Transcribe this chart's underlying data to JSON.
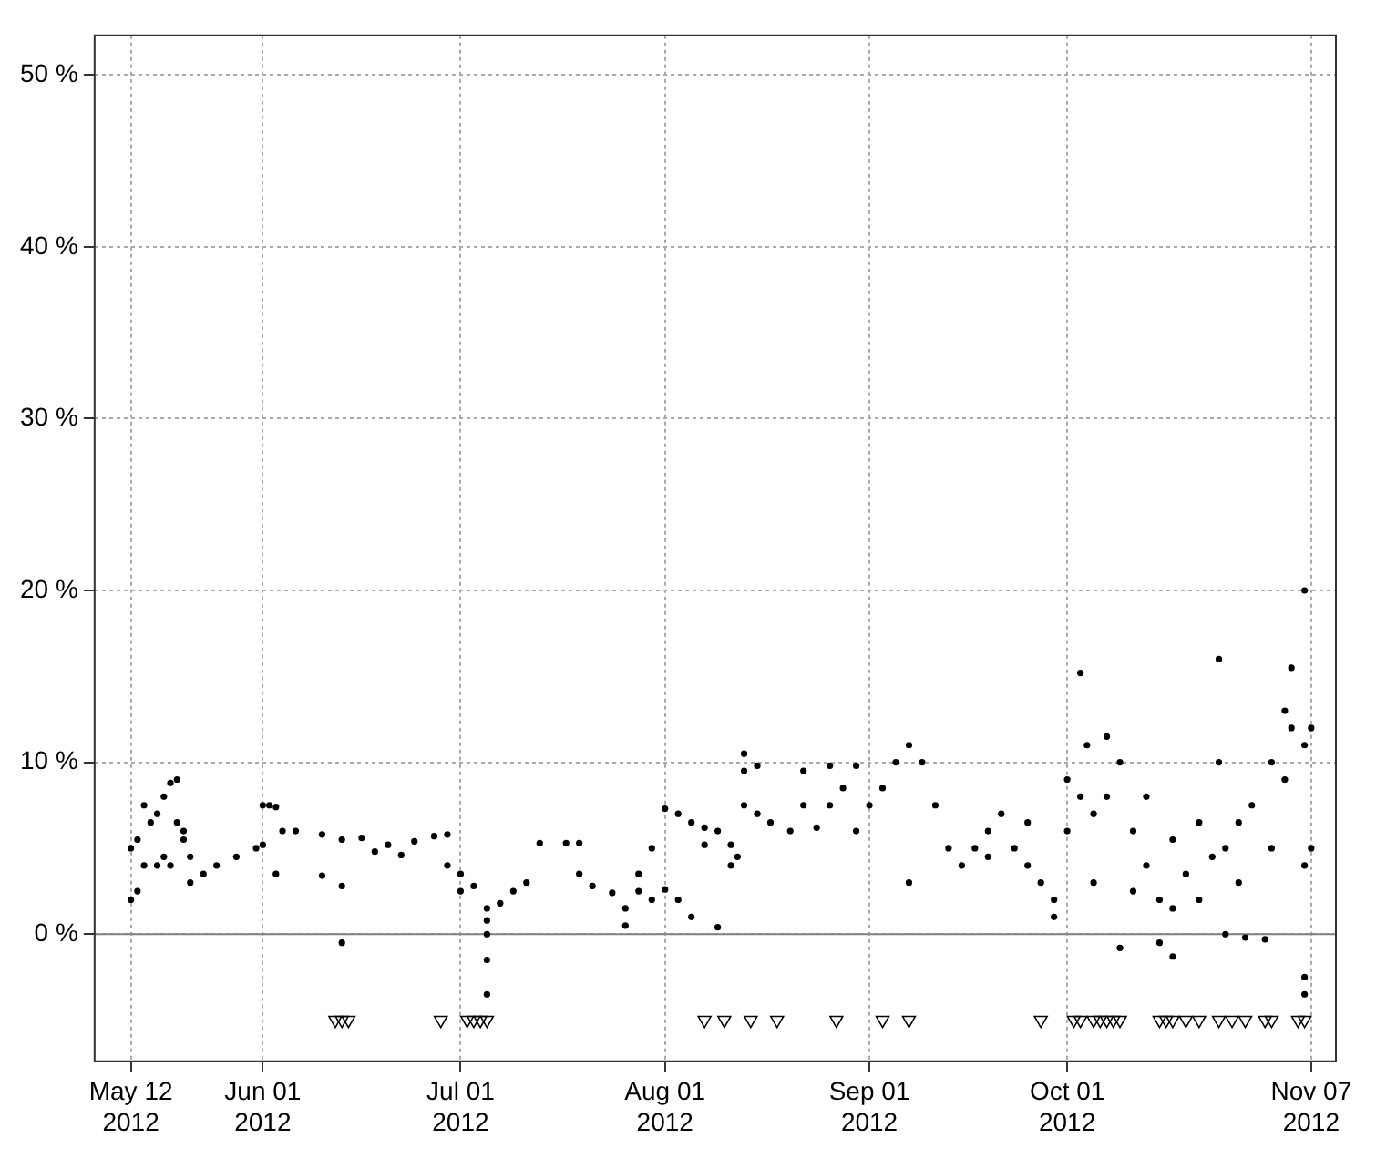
{
  "chart_data": {
    "type": "scatter",
    "xlim": [
      "2012-05-06T12:00",
      "2012-11-10T18:00"
    ],
    "ylim": [
      -7.4,
      52.3
    ],
    "xticks": [
      {
        "value": "2012-05-12",
        "label": "May 12\n2012"
      },
      {
        "value": "2012-06-01",
        "label": "Jun 01\n2012"
      },
      {
        "value": "2012-07-01",
        "label": "Jul 01\n2012"
      },
      {
        "value": "2012-08-01",
        "label": "Aug 01\n2012"
      },
      {
        "value": "2012-09-01",
        "label": "Sep 01\n2012"
      },
      {
        "value": "2012-10-01",
        "label": "Oct 01\n2012"
      },
      {
        "value": "2012-11-07",
        "label": "Nov 07\n2012"
      }
    ],
    "yticks": [
      {
        "value": 0,
        "label": "0 %"
      },
      {
        "value": 10,
        "label": "10 %"
      },
      {
        "value": 20,
        "label": "20 %"
      },
      {
        "value": 30,
        "label": "30 %"
      },
      {
        "value": 40,
        "label": "40 %"
      },
      {
        "value": 50,
        "label": "50 %"
      }
    ],
    "grid": true,
    "legend": false,
    "ref_lines": [
      {
        "axis": "y",
        "value": 0,
        "color": "#808080",
        "line_style": "solid"
      }
    ],
    "series": [
      {
        "color": "#000000",
        "marker": "circle",
        "x": [
          "2012-05-12",
          "2012-05-12",
          "2012-05-13",
          "2012-05-13",
          "2012-05-14",
          "2012-05-14",
          "2012-05-15",
          "2012-05-16",
          "2012-05-16",
          "2012-05-17",
          "2012-05-17",
          "2012-05-18",
          "2012-05-18",
          "2012-05-19",
          "2012-05-19",
          "2012-05-20",
          "2012-05-20",
          "2012-05-21",
          "2012-05-21",
          "2012-05-23",
          "2012-05-25",
          "2012-05-28",
          "2012-05-31",
          "2012-06-01",
          "2012-06-01",
          "2012-06-02",
          "2012-06-03",
          "2012-06-03",
          "2012-06-04",
          "2012-06-06",
          "2012-06-10",
          "2012-06-10",
          "2012-06-13",
          "2012-06-13",
          "2012-06-13",
          "2012-06-16",
          "2012-06-18",
          "2012-06-20",
          "2012-06-22",
          "2012-06-24",
          "2012-06-27",
          "2012-06-29",
          "2012-06-29",
          "2012-07-01",
          "2012-07-01",
          "2012-07-03",
          "2012-07-05",
          "2012-07-05",
          "2012-07-05",
          "2012-07-05",
          "2012-07-05",
          "2012-07-07",
          "2012-07-09",
          "2012-07-11",
          "2012-07-13",
          "2012-07-17",
          "2012-07-19",
          "2012-07-19",
          "2012-07-21",
          "2012-07-24",
          "2012-07-26",
          "2012-07-26",
          "2012-07-28",
          "2012-07-28",
          "2012-07-30",
          "2012-07-30",
          "2012-08-01",
          "2012-08-01",
          "2012-08-03",
          "2012-08-03",
          "2012-08-05",
          "2012-08-05",
          "2012-08-07",
          "2012-08-07",
          "2012-08-09",
          "2012-08-09",
          "2012-08-11",
          "2012-08-11",
          "2012-08-12",
          "2012-08-13",
          "2012-08-13",
          "2012-08-13",
          "2012-08-15",
          "2012-08-15",
          "2012-08-17",
          "2012-08-20",
          "2012-08-22",
          "2012-08-22",
          "2012-08-24",
          "2012-08-26",
          "2012-08-26",
          "2012-08-28",
          "2012-08-30",
          "2012-08-30",
          "2012-09-01",
          "2012-09-03",
          "2012-09-05",
          "2012-09-07",
          "2012-09-07",
          "2012-09-09",
          "2012-09-11",
          "2012-09-13",
          "2012-09-15",
          "2012-09-17",
          "2012-09-19",
          "2012-09-19",
          "2012-09-21",
          "2012-09-23",
          "2012-09-25",
          "2012-09-25",
          "2012-09-27",
          "2012-09-29",
          "2012-09-29",
          "2012-10-01",
          "2012-10-01",
          "2012-10-03",
          "2012-10-03",
          "2012-10-04",
          "2012-10-05",
          "2012-10-05",
          "2012-10-07",
          "2012-10-07",
          "2012-10-09",
          "2012-10-09",
          "2012-10-11",
          "2012-10-11",
          "2012-10-13",
          "2012-10-13",
          "2012-10-15",
          "2012-10-15",
          "2012-10-17",
          "2012-10-17",
          "2012-10-17",
          "2012-10-19",
          "2012-10-21",
          "2012-10-21",
          "2012-10-23",
          "2012-10-24",
          "2012-10-24",
          "2012-10-25",
          "2012-10-25",
          "2012-10-27",
          "2012-10-27",
          "2012-10-28",
          "2012-10-29",
          "2012-10-31",
          "2012-11-01",
          "2012-11-01",
          "2012-11-03",
          "2012-11-03",
          "2012-11-04",
          "2012-11-04",
          "2012-11-06",
          "2012-11-06",
          "2012-11-06",
          "2012-11-06",
          "2012-11-06",
          "2012-11-07",
          "2012-11-07"
        ],
        "values": [
          2,
          5,
          5.5,
          2.5,
          7.5,
          4,
          6.5,
          4,
          7,
          8,
          4.5,
          8.8,
          4,
          9,
          6.5,
          6,
          5.5,
          4.5,
          3,
          3.5,
          4,
          4.5,
          5,
          5.2,
          7.5,
          7.5,
          7.4,
          3.5,
          6,
          6,
          5.8,
          3.4,
          5.5,
          -0.5,
          2.8,
          5.6,
          4.8,
          5.2,
          4.6,
          5.4,
          5.7,
          5.8,
          4,
          3.5,
          2.5,
          2.8,
          1.5,
          0.8,
          0,
          -1.5,
          -3.5,
          1.8,
          2.5,
          3,
          5.3,
          5.3,
          5.3,
          3.5,
          2.8,
          2.4,
          0.5,
          1.5,
          2.5,
          3.5,
          5,
          2,
          7.3,
          2.6,
          7,
          2,
          6.5,
          1,
          6.2,
          5.2,
          6,
          0.4,
          5.2,
          4,
          4.5,
          9.5,
          10.5,
          7.5,
          9.8,
          7,
          6.5,
          6,
          7.5,
          9.5,
          6.2,
          7.5,
          9.8,
          8.5,
          6,
          9.8,
          7.5,
          8.5,
          10,
          11,
          3,
          10,
          7.5,
          5,
          4,
          5,
          6,
          4.5,
          7,
          5,
          6.5,
          4,
          3,
          1,
          2,
          6,
          9,
          8,
          15.2,
          11,
          7,
          3,
          11.5,
          8,
          10,
          -0.8,
          6,
          2.5,
          4,
          8,
          2,
          -0.5,
          1.5,
          -1.3,
          5.5,
          3.5,
          6.5,
          2,
          4.5,
          16,
          10,
          5,
          0,
          6.5,
          3,
          -0.2,
          7.5,
          -0.3,
          10,
          5,
          13,
          9,
          15.5,
          12,
          20,
          11,
          4,
          -2.5,
          -3.5,
          12,
          5
        ]
      },
      {
        "color": "#000000",
        "marker": "triangle",
        "x": [
          "2012-06-12",
          "2012-06-13",
          "2012-06-14",
          "2012-06-28",
          "2012-07-02",
          "2012-07-03",
          "2012-07-04",
          "2012-07-05",
          "2012-08-07",
          "2012-08-10",
          "2012-08-14",
          "2012-08-18",
          "2012-08-27",
          "2012-09-03",
          "2012-09-07",
          "2012-09-27",
          "2012-10-02",
          "2012-10-03",
          "2012-10-05",
          "2012-10-06",
          "2012-10-07",
          "2012-10-08",
          "2012-10-09",
          "2012-10-15",
          "2012-10-16",
          "2012-10-17",
          "2012-10-19",
          "2012-10-21",
          "2012-10-24",
          "2012-10-26",
          "2012-10-28",
          "2012-10-31",
          "2012-11-01",
          "2012-11-05",
          "2012-11-06"
        ],
        "values": [
          -5,
          -5,
          -5,
          -5,
          -5,
          -5,
          -5,
          -5,
          -5,
          -5,
          -5,
          -5,
          -5,
          -5,
          -5,
          -5,
          -5,
          -5,
          -5,
          -5,
          -5,
          -5,
          -5,
          -5,
          -5,
          -5,
          -5,
          -5,
          -5,
          -5,
          -5,
          -5,
          -5,
          -5,
          -5
        ]
      }
    ]
  }
}
